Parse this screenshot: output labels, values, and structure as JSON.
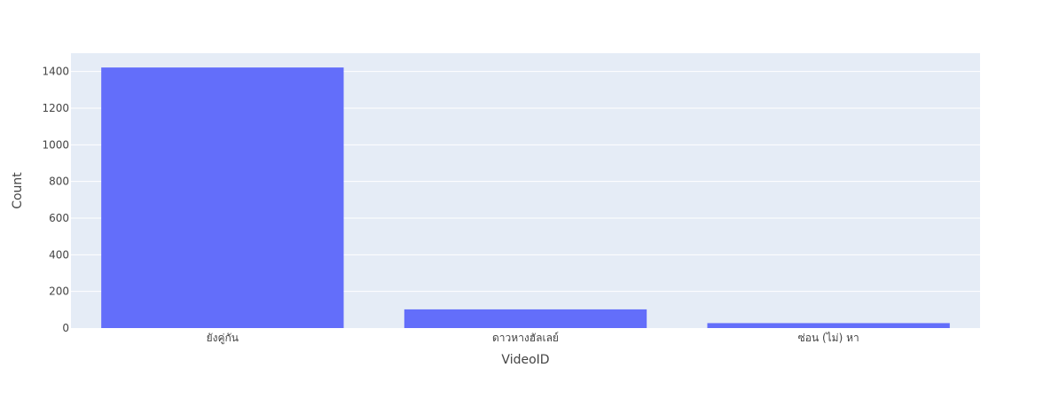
{
  "chart_data": {
    "type": "bar",
    "title": "",
    "xlabel": "VideoID",
    "ylabel": "Count",
    "categories": [
      "ยังคู่กัน",
      "ดาวหางฮัลเลย์",
      "ซ่อน (ไม่) หา"
    ],
    "series": [
      {
        "values": [
          1422,
          102,
          27
        ]
      }
    ],
    "ylim": [
      0,
      1500
    ],
    "yticks": [
      0,
      200,
      400,
      600,
      800,
      1000,
      1200,
      1400
    ],
    "grid": true,
    "legend": "none",
    "colors": {
      "bar": "#636efa",
      "plot_background": "#e5ecf6",
      "gridline": "#ffffff"
    }
  }
}
